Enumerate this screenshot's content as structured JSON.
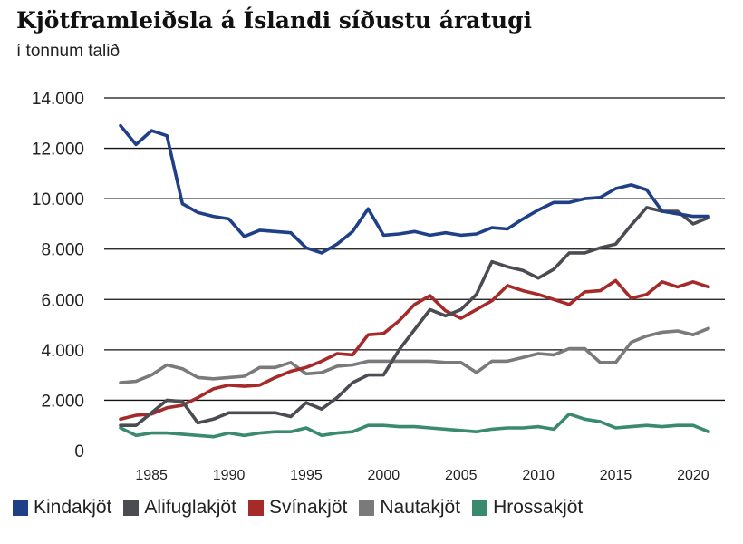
{
  "title": "Kjötframleiðsla á Íslandi síðustu áratugi",
  "subtitle": "í tonnum talið",
  "chart_data": {
    "type": "line",
    "title": "Kjötframleiðsla á Íslandi síðustu áratugi",
    "subtitle": "í tonnum talið",
    "xlabel": "",
    "ylabel": "",
    "xlim": [
      1983,
      2021
    ],
    "ylim": [
      0,
      14000
    ],
    "yticks": [
      0,
      2000,
      4000,
      6000,
      8000,
      10000,
      12000,
      14000
    ],
    "ytick_labels": [
      "0",
      "2.000",
      "4.000",
      "6.000",
      "8.000",
      "10.000",
      "12.000",
      "14.000"
    ],
    "xticks": [
      1985,
      1990,
      1995,
      2000,
      2005,
      2010,
      2015,
      2020
    ],
    "xtick_labels": [
      "1985",
      "1990",
      "1995",
      "2000",
      "2005",
      "2010",
      "2015",
      "2020"
    ],
    "grid": "horizontal",
    "legend_position": "bottom",
    "x": [
      1983,
      1984,
      1985,
      1986,
      1987,
      1988,
      1989,
      1990,
      1991,
      1992,
      1993,
      1994,
      1995,
      1996,
      1997,
      1998,
      1999,
      2000,
      2001,
      2002,
      2003,
      2004,
      2005,
      2006,
      2007,
      2008,
      2009,
      2010,
      2011,
      2012,
      2013,
      2014,
      2015,
      2016,
      2017,
      2018,
      2019,
      2020,
      2021
    ],
    "series": [
      {
        "name": "Kindakjöt",
        "color": "#1f3f87",
        "values": [
          12900,
          12150,
          12700,
          12500,
          9800,
          9450,
          9300,
          9200,
          8500,
          8750,
          8700,
          8650,
          8050,
          7850,
          8200,
          8700,
          9600,
          8550,
          8600,
          8700,
          8550,
          8650,
          8550,
          8600,
          8850,
          8800,
          9200,
          9550,
          9850,
          9850,
          10000,
          10050,
          10400,
          10550,
          10350,
          9500,
          9400,
          9300,
          9300
        ]
      },
      {
        "name": "Alifuglakjöt",
        "color": "#4a4c52",
        "values": [
          1000,
          1000,
          1500,
          2000,
          1950,
          1100,
          1250,
          1500,
          1500,
          1500,
          1500,
          1350,
          1900,
          1650,
          2100,
          2700,
          3000,
          3000,
          4000,
          4800,
          5600,
          5350,
          5600,
          6200,
          7500,
          7300,
          7150,
          6850,
          7200,
          7850,
          7850,
          8050,
          8200,
          8950,
          9650,
          9500,
          9500,
          9000,
          9250
        ]
      },
      {
        "name": "Svínakjöt",
        "color": "#a52a2a",
        "values": [
          1250,
          1400,
          1450,
          1700,
          1800,
          2100,
          2450,
          2600,
          2550,
          2600,
          2900,
          3150,
          3300,
          3550,
          3850,
          3800,
          4600,
          4650,
          5150,
          5800,
          6150,
          5550,
          5250,
          5600,
          5950,
          6550,
          6350,
          6200,
          6000,
          5800,
          6300,
          6350,
          6750,
          6050,
          6200,
          6700,
          6500,
          6700,
          6500
        ]
      },
      {
        "name": "Nautakjöt",
        "color": "#7a7a7a",
        "values": [
          2700,
          2750,
          3000,
          3400,
          3250,
          2900,
          2850,
          2900,
          2950,
          3300,
          3300,
          3500,
          3050,
          3100,
          3350,
          3400,
          3550,
          3550,
          3550,
          3550,
          3550,
          3500,
          3500,
          3100,
          3550,
          3550,
          3700,
          3850,
          3800,
          4050,
          4050,
          3500,
          3500,
          4300,
          4550,
          4700,
          4750,
          4600,
          4850
        ]
      },
      {
        "name": "Hrossakjöt",
        "color": "#3a8a6e",
        "values": [
          900,
          600,
          700,
          700,
          650,
          600,
          550,
          700,
          600,
          700,
          750,
          750,
          900,
          600,
          700,
          750,
          1000,
          1000,
          950,
          950,
          900,
          850,
          800,
          750,
          850,
          900,
          900,
          950,
          850,
          1450,
          1250,
          1150,
          900,
          950,
          1000,
          950,
          1000,
          1000,
          750
        ]
      }
    ]
  }
}
